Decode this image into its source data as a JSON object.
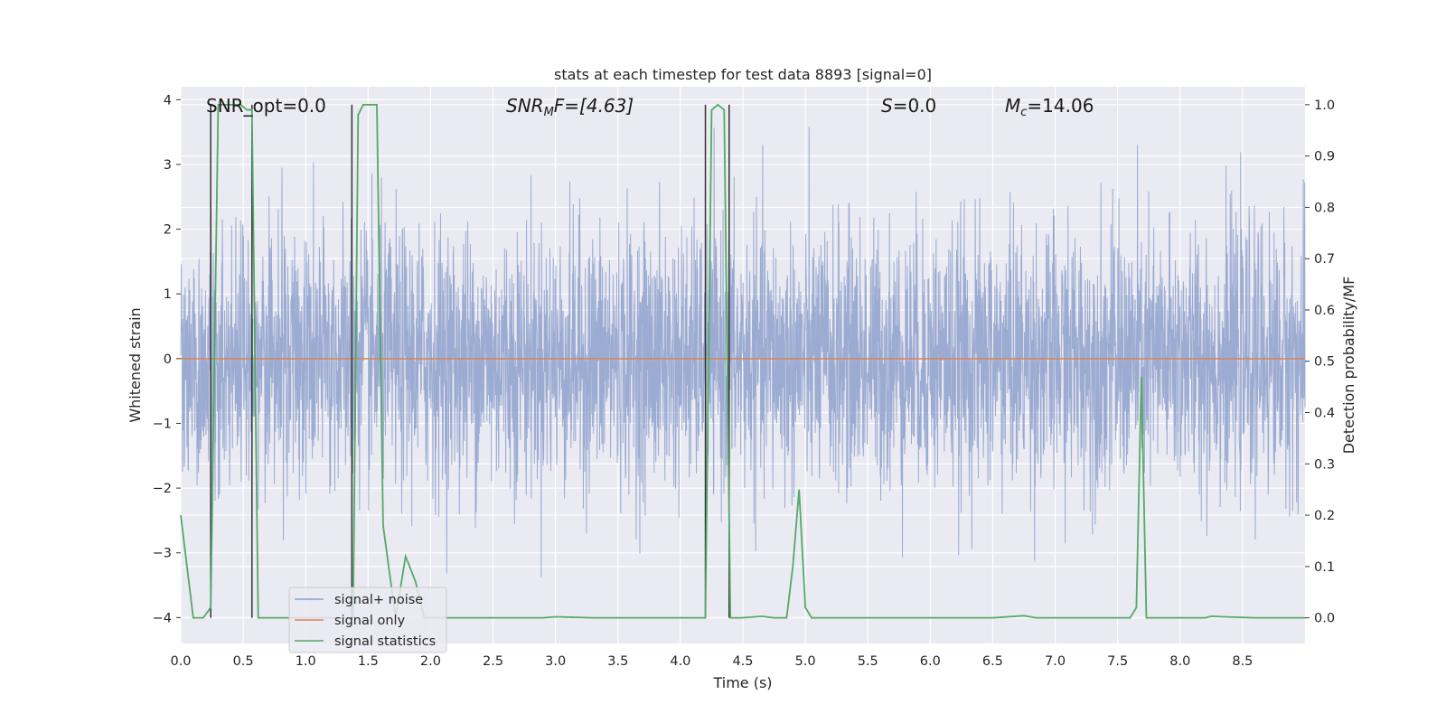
{
  "chart_data": {
    "type": "line",
    "title": "stats at each timestep for test data 8893 [signal=0]",
    "xlabel": "Time (s)",
    "ylabel_left": "Whitened strain",
    "ylabel_right": "Detection probability/MF",
    "xlim": [
      0.0,
      9.0
    ],
    "ylim_left": [
      -4.4,
      4.2
    ],
    "ylim_right": [
      -0.05,
      1.035
    ],
    "x_ticks": [
      "0.0",
      "0.5",
      "1.0",
      "1.5",
      "2.0",
      "2.5",
      "3.0",
      "3.5",
      "4.0",
      "4.5",
      "5.0",
      "5.5",
      "6.0",
      "6.5",
      "7.0",
      "7.5",
      "8.0",
      "8.5"
    ],
    "y_ticks_left": [
      "−4",
      "−3",
      "−2",
      "−1",
      "0",
      "1",
      "2",
      "3",
      "4"
    ],
    "y_ticks_right": [
      "0.0",
      "0.1",
      "0.2",
      "0.3",
      "0.4",
      "0.5",
      "0.6",
      "0.7",
      "0.8",
      "0.9",
      "1.0"
    ],
    "grid": true,
    "legend_position": "lower-left",
    "annotations": {
      "snr_opt": "SNR_opt=0.0",
      "snr_mf_prefix": "SNR",
      "snr_mf_sub": "M",
      "snr_mf_suffix": "F=[4.63]",
      "s_symbol": "S",
      "s_value": "=0.0",
      "mc_symbol": "M",
      "mc_sub": "c",
      "mc_value": "=14.06"
    },
    "series": [
      {
        "name": "signal+ noise",
        "color": "#8da0cb",
        "kind": "noise",
        "note_values": "dense white-noise strain, approx mean 0, std 1, range about -3.8 to 3.9 over 0-9 s"
      },
      {
        "name": "signal only",
        "color": "#dd8452",
        "x": [
          0.0,
          9.0
        ],
        "y": [
          0.0,
          0.0
        ]
      },
      {
        "name": "signal statistics",
        "color": "#55a868",
        "x": [
          0.0,
          0.05,
          0.1,
          0.18,
          0.24,
          0.3,
          0.36,
          0.42,
          0.48,
          0.53,
          0.57,
          0.62,
          0.9,
          1.2,
          1.38,
          1.42,
          1.46,
          1.52,
          1.57,
          1.62,
          1.72,
          1.8,
          1.88,
          1.95,
          2.2,
          2.5,
          2.9,
          3.0,
          3.3,
          3.6,
          3.9,
          4.2,
          4.25,
          4.3,
          4.35,
          4.4,
          4.44,
          4.49,
          4.6,
          4.65,
          4.75,
          4.85,
          4.9,
          4.95,
          5.0,
          5.05,
          5.3,
          5.6,
          6.0,
          6.5,
          6.75,
          6.85,
          7.0,
          7.3,
          7.6,
          7.65,
          7.69,
          7.73,
          7.8,
          8.2,
          8.25,
          8.35,
          8.6,
          9.0
        ],
        "y": [
          0.2,
          0.1,
          0.0,
          0.0,
          0.02,
          1.0,
          1.0,
          1.0,
          1.0,
          0.99,
          0.99,
          0.0,
          0.0,
          0.0,
          0.0,
          0.98,
          1.0,
          1.0,
          1.0,
          0.18,
          0.0,
          0.12,
          0.07,
          0.0,
          0.0,
          0.0,
          0.0,
          0.002,
          0.0,
          0.0,
          0.0,
          0.0,
          0.99,
          1.0,
          0.99,
          0.0,
          0.0,
          0.0,
          0.002,
          0.003,
          0.0,
          0.0,
          0.1,
          0.25,
          0.02,
          0.0,
          0.0,
          0.0,
          0.0,
          0.0,
          0.004,
          0.0,
          0.0,
          0.0,
          0.0,
          0.02,
          0.47,
          0.0,
          0.0,
          0.0,
          0.003,
          0.002,
          0.0,
          0.0
        ]
      }
    ],
    "black_markers_x": [
      0.24,
      0.57,
      1.37,
      4.2,
      4.39
    ],
    "colors": {
      "plot_background": "#eaeaf2",
      "grid": "#ffffff",
      "marker": "#333333"
    }
  }
}
